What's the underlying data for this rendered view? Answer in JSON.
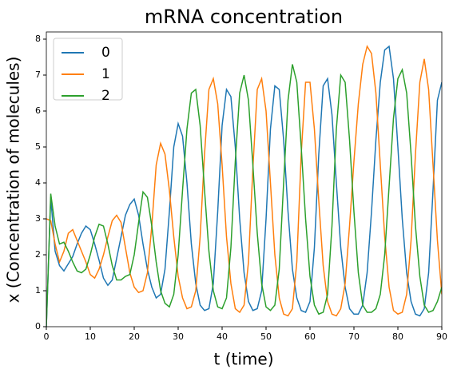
{
  "chart_data": {
    "type": "line",
    "title": "mRNA concentration",
    "x_label": "t (time)",
    "y_label": "x (Concentration of molecules)",
    "x": [
      0,
      1,
      2,
      3,
      4,
      5,
      6,
      7,
      8,
      9,
      10,
      11,
      12,
      13,
      14,
      15,
      16,
      17,
      18,
      19,
      20,
      21,
      22,
      23,
      24,
      25,
      26,
      27,
      28,
      29,
      30,
      31,
      32,
      33,
      34,
      35,
      36,
      37,
      38,
      39,
      40,
      41,
      42,
      43,
      44,
      45,
      46,
      47,
      48,
      49,
      50,
      51,
      52,
      53,
      54,
      55,
      56,
      57,
      58,
      59,
      60,
      61,
      62,
      63,
      64,
      65,
      66,
      67,
      68,
      69,
      70,
      71,
      72,
      73,
      74,
      75,
      76,
      77,
      78,
      79,
      80,
      81,
      82,
      83,
      84,
      85,
      86,
      87,
      88,
      89,
      90
    ],
    "series": [
      {
        "name": "0",
        "color": "#1f77b4",
        "values": [
          0,
          3.6,
          2.1,
          1.7,
          1.55,
          1.75,
          1.95,
          2.3,
          2.6,
          2.8,
          2.7,
          2.3,
          1.85,
          1.35,
          1.15,
          1.3,
          1.9,
          2.5,
          3.1,
          3.4,
          3.55,
          3.1,
          2.3,
          1.6,
          1.1,
          0.8,
          0.9,
          1.6,
          3.2,
          5.0,
          5.65,
          5.3,
          4.0,
          2.3,
          1.2,
          0.6,
          0.45,
          0.5,
          1.2,
          3.2,
          5.6,
          6.6,
          6.4,
          5.0,
          3.0,
          1.5,
          0.7,
          0.45,
          0.5,
          1.0,
          3.0,
          5.5,
          6.7,
          6.6,
          5.2,
          3.2,
          1.6,
          0.8,
          0.45,
          0.4,
          0.7,
          2.2,
          4.8,
          6.7,
          6.9,
          5.9,
          4.0,
          2.2,
          1.1,
          0.5,
          0.35,
          0.35,
          0.6,
          1.5,
          3.2,
          5.2,
          6.8,
          7.7,
          7.8,
          6.9,
          5.0,
          3.0,
          1.5,
          0.7,
          0.35,
          0.3,
          0.5,
          1.5,
          3.8,
          6.3,
          6.8
        ]
      },
      {
        "name": "1",
        "color": "#ff7f0e",
        "values": [
          3.0,
          2.95,
          2.3,
          1.8,
          2.1,
          2.6,
          2.7,
          2.4,
          2.1,
          1.8,
          1.45,
          1.35,
          1.6,
          2.0,
          2.5,
          2.95,
          3.1,
          2.9,
          2.2,
          1.5,
          1.1,
          0.95,
          1.0,
          1.5,
          2.8,
          4.5,
          5.1,
          4.8,
          3.8,
          2.5,
          1.4,
          0.8,
          0.5,
          0.55,
          1.0,
          2.5,
          4.8,
          6.6,
          6.9,
          6.2,
          4.5,
          2.5,
          1.2,
          0.5,
          0.4,
          0.6,
          1.8,
          4.4,
          6.6,
          6.9,
          6.0,
          4.0,
          2.0,
          0.8,
          0.35,
          0.3,
          0.5,
          1.8,
          4.8,
          6.8,
          6.8,
          5.5,
          3.5,
          1.7,
          0.7,
          0.35,
          0.3,
          0.5,
          1.2,
          2.8,
          4.6,
          6.2,
          7.3,
          7.8,
          7.6,
          6.5,
          4.5,
          2.5,
          1.1,
          0.45,
          0.35,
          0.4,
          0.9,
          2.4,
          4.8,
          6.8,
          7.45,
          6.6,
          4.5,
          2.4,
          0.9
        ]
      },
      {
        "name": "2",
        "color": "#2ca02c",
        "values": [
          0,
          3.7,
          2.8,
          2.3,
          2.35,
          2.1,
          1.8,
          1.55,
          1.5,
          1.6,
          2.0,
          2.5,
          2.85,
          2.8,
          2.3,
          1.7,
          1.3,
          1.3,
          1.4,
          1.45,
          2.0,
          2.9,
          3.75,
          3.6,
          2.8,
          1.8,
          1.0,
          0.65,
          0.55,
          0.9,
          2.0,
          3.8,
          5.5,
          6.5,
          6.6,
          5.6,
          3.8,
          2.1,
          1.0,
          0.55,
          0.5,
          0.8,
          2.2,
          4.6,
          6.5,
          7.0,
          6.3,
          4.5,
          2.6,
          1.2,
          0.55,
          0.45,
          0.6,
          1.6,
          4.0,
          6.3,
          7.3,
          6.8,
          5.0,
          3.0,
          1.4,
          0.6,
          0.35,
          0.4,
          0.9,
          2.8,
          5.5,
          7.0,
          6.8,
          5.2,
          3.2,
          1.5,
          0.6,
          0.4,
          0.4,
          0.5,
          0.9,
          2.0,
          3.9,
          5.8,
          6.9,
          7.15,
          6.5,
          4.8,
          2.8,
          1.4,
          0.6,
          0.4,
          0.45,
          0.7,
          1.1
        ]
      }
    ],
    "xlim": [
      0,
      90
    ],
    "xticks": [
      0,
      10,
      20,
      30,
      40,
      50,
      60,
      70,
      80,
      90
    ],
    "ylim": [
      0,
      8.2
    ],
    "yticks": [
      0,
      1,
      2,
      3,
      4,
      5,
      6,
      7,
      8
    ],
    "legend": "upper left"
  }
}
